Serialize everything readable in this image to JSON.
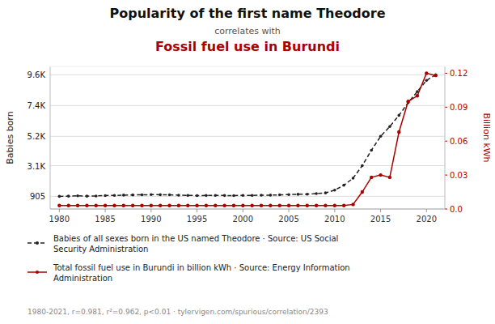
{
  "chart_data": {
    "type": "line",
    "title": [
      "Popularity of the first name Theodore",
      "Fossil fuel use in Burundi"
    ],
    "subtitle": "correlates with",
    "x_label": null,
    "y_label": "Babies born",
    "y2_label": "Billion kWh",
    "x": [
      1980,
      1981,
      1982,
      1983,
      1984,
      1985,
      1986,
      1987,
      1988,
      1989,
      1990,
      1991,
      1992,
      1993,
      1994,
      1995,
      1996,
      1997,
      1998,
      1999,
      2000,
      2001,
      2002,
      2003,
      2004,
      2005,
      2006,
      2007,
      2008,
      2009,
      2010,
      2011,
      2012,
      2013,
      2014,
      2015,
      2016,
      2017,
      2018,
      2019,
      2020,
      2021
    ],
    "series": [
      {
        "name": "Babies of all sexes born in the US named Theodore · Source: US Social\nSecurity Administration",
        "color": "#222222",
        "marker": "circle",
        "line_style": "dashed",
        "values": [
          905,
          918,
          940,
          920,
          930,
          960,
          970,
          990,
          1005,
          1010,
          1025,
          1020,
          1010,
          985,
          975,
          960,
          965,
          970,
          965,
          960,
          970,
          975,
          985,
          990,
          1010,
          1030,
          1050,
          1060,
          1100,
          1150,
          1350,
          1700,
          2200,
          3100,
          4200,
          5200,
          5900,
          6700,
          7600,
          8400,
          9200,
          9600
        ]
      },
      {
        "name": "Total fossil fuel use in Burundi in billion kWh · Source: Energy Information\nAdministration",
        "color": "#aa0000",
        "marker": "circle",
        "line_style": "solid",
        "axis": "y2",
        "values": [
          0.003,
          0.003,
          0.003,
          0.003,
          0.003,
          0.003,
          0.003,
          0.003,
          0.003,
          0.003,
          0.003,
          0.003,
          0.003,
          0.003,
          0.003,
          0.003,
          0.003,
          0.003,
          0.003,
          0.003,
          0.003,
          0.003,
          0.003,
          0.003,
          0.003,
          0.003,
          0.003,
          0.003,
          0.003,
          0.003,
          0.003,
          0.003,
          0.004,
          0.015,
          0.028,
          0.03,
          0.028,
          0.068,
          0.095,
          0.1,
          0.12,
          0.118
        ]
      }
    ],
    "xlim": [
      1979,
      2022
    ],
    "xticks": [
      1980,
      1985,
      1990,
      1995,
      2000,
      2005,
      2010,
      2015,
      2020
    ],
    "ylim": [
      0,
      10200
    ],
    "yticks": [
      905,
      {
        "value": 3100,
        "label": "3.1K"
      },
      {
        "value": 5200,
        "label": "5.2K"
      },
      {
        "value": 7400,
        "label": "7.4K"
      },
      {
        "value": 9600,
        "label": "9.6K"
      }
    ],
    "y2lim": [
      0,
      0.126
    ],
    "y2ticks": [
      {
        "value": 0,
        "label": "0.0"
      },
      0.03,
      0.06,
      0.09,
      0.12
    ],
    "grid": true,
    "legend": "bottom",
    "annotations": [
      "1980-2021, r=0.981, r²=0.962, p<0.01 · tylervigen.com/spurious/correlation/2393"
    ]
  }
}
